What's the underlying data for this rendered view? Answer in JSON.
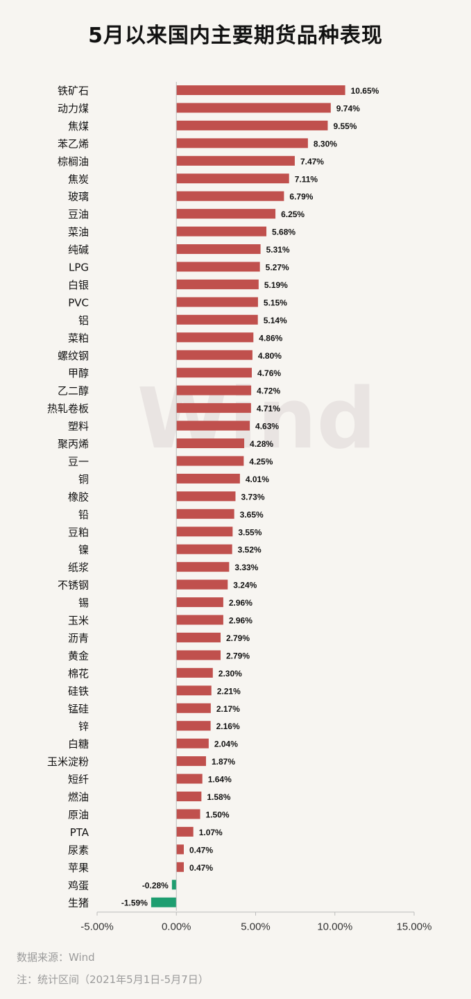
{
  "title": "5月以来国内主要期货品种表现",
  "source": "数据来源：Wind",
  "note": "注：统计区间（2021年5月1日-5月7日）",
  "watermark": "Wind",
  "colors": {
    "positive": "#c0504d",
    "negative": "#1e9e70"
  },
  "chart_data": {
    "type": "bar",
    "orientation": "horizontal",
    "title": "5月以来国内主要期货品种表现",
    "xlim": [
      -5,
      15
    ],
    "xticks": [
      "-5.00%",
      "0.00%",
      "5.00%",
      "10.00%",
      "15.00%"
    ],
    "xtick_values": [
      -5,
      0,
      5,
      10,
      15
    ],
    "grid": false,
    "categories": [
      "铁矿石",
      "动力煤",
      "焦煤",
      "苯乙烯",
      "棕榈油",
      "焦炭",
      "玻璃",
      "豆油",
      "菜油",
      "纯碱",
      "LPG",
      "白银",
      "PVC",
      "铝",
      "菜粕",
      "螺纹钢",
      "甲醇",
      "乙二醇",
      "热轧卷板",
      "塑料",
      "聚丙烯",
      "豆一",
      "铜",
      "橡胶",
      "铅",
      "豆粕",
      "镍",
      "纸浆",
      "不锈钢",
      "锡",
      "玉米",
      "沥青",
      "黄金",
      "棉花",
      "硅铁",
      "锰硅",
      "锌",
      "白糖",
      "玉米淀粉",
      "短纤",
      "燃油",
      "原油",
      "PTA",
      "尿素",
      "苹果",
      "鸡蛋",
      "生猪"
    ],
    "values": [
      10.65,
      9.74,
      9.55,
      8.3,
      7.47,
      7.11,
      6.79,
      6.25,
      5.68,
      5.31,
      5.27,
      5.19,
      5.15,
      5.14,
      4.86,
      4.8,
      4.76,
      4.72,
      4.71,
      4.63,
      4.28,
      4.25,
      4.01,
      3.73,
      3.65,
      3.55,
      3.52,
      3.33,
      3.24,
      2.96,
      2.96,
      2.79,
      2.79,
      2.3,
      2.21,
      2.17,
      2.16,
      2.04,
      1.87,
      1.64,
      1.58,
      1.5,
      1.07,
      0.47,
      0.47,
      -0.28,
      -1.59
    ],
    "labels": [
      "10.65%",
      "9.74%",
      "9.55%",
      "8.30%",
      "7.47%",
      "7.11%",
      "6.79%",
      "6.25%",
      "5.68%",
      "5.31%",
      "5.27%",
      "5.19%",
      "5.15%",
      "5.14%",
      "4.86%",
      "4.80%",
      "4.76%",
      "4.72%",
      "4.71%",
      "4.63%",
      "4.28%",
      "4.25%",
      "4.01%",
      "3.73%",
      "3.65%",
      "3.55%",
      "3.52%",
      "3.33%",
      "3.24%",
      "2.96%",
      "2.96%",
      "2.79%",
      "2.79%",
      "2.30%",
      "2.21%",
      "2.17%",
      "2.16%",
      "2.04%",
      "1.87%",
      "1.64%",
      "1.58%",
      "1.50%",
      "1.07%",
      "0.47%",
      "0.47%",
      "-0.28%",
      "-1.59%"
    ]
  }
}
